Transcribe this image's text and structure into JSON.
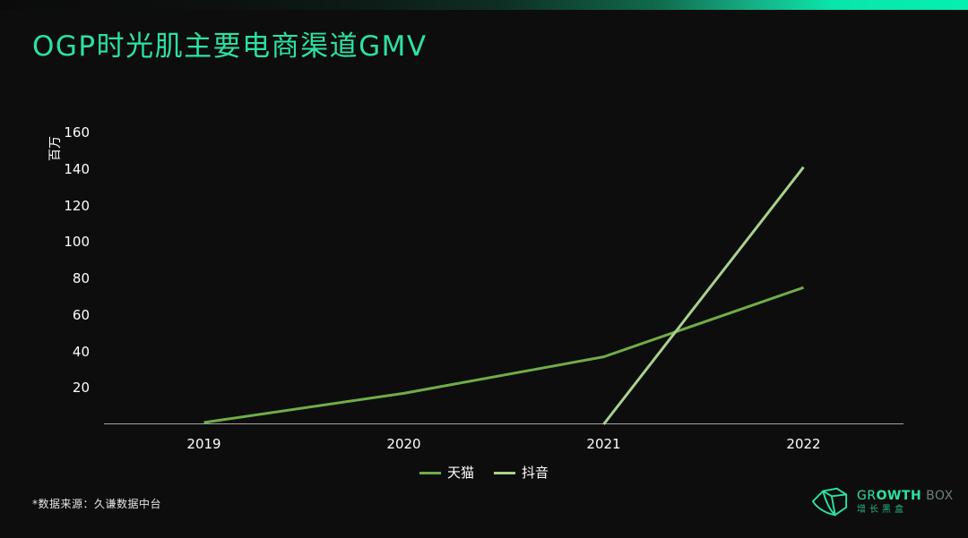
{
  "page": {
    "title": "OGP时光肌主要电商渠道GMV",
    "footer_source": "*数据来源：久谦数据中台"
  },
  "brand": {
    "wordmark_prefix": "GR",
    "wordmark_bold": "OWTH",
    "wordmark_suffix": "BOX",
    "name_cn": "增长黑盒"
  },
  "colors": {
    "background": "#0d0d0d",
    "accent_green": "#2ce2a2",
    "topbar_gradient_end": "#04f0b0",
    "tmall_line": "#70ad47",
    "douyin_line": "#a9d18e",
    "axis_line": "#a6a6a6",
    "tick_text": "#ffffff",
    "brand_dim": "#6b8078",
    "brand_cn": "#23b286"
  },
  "chart_data": {
    "type": "line",
    "title": "OGP时光肌主要电商渠道GMV",
    "unit_label": "百万",
    "categories": [
      "2019",
      "2020",
      "2021",
      "2022"
    ],
    "series": [
      {
        "name": "天猫",
        "color": "#70ad47",
        "values": [
          1,
          17,
          37,
          75
        ]
      },
      {
        "name": "抖音",
        "color": "#a9d18e",
        "values": [
          null,
          null,
          0,
          141
        ]
      }
    ],
    "ylabel": "百万",
    "xlabel": "",
    "ylim": [
      0,
      160
    ],
    "yticks": [
      20,
      40,
      60,
      80,
      100,
      120,
      140,
      160
    ],
    "grid": false,
    "legend_position": "bottom"
  }
}
